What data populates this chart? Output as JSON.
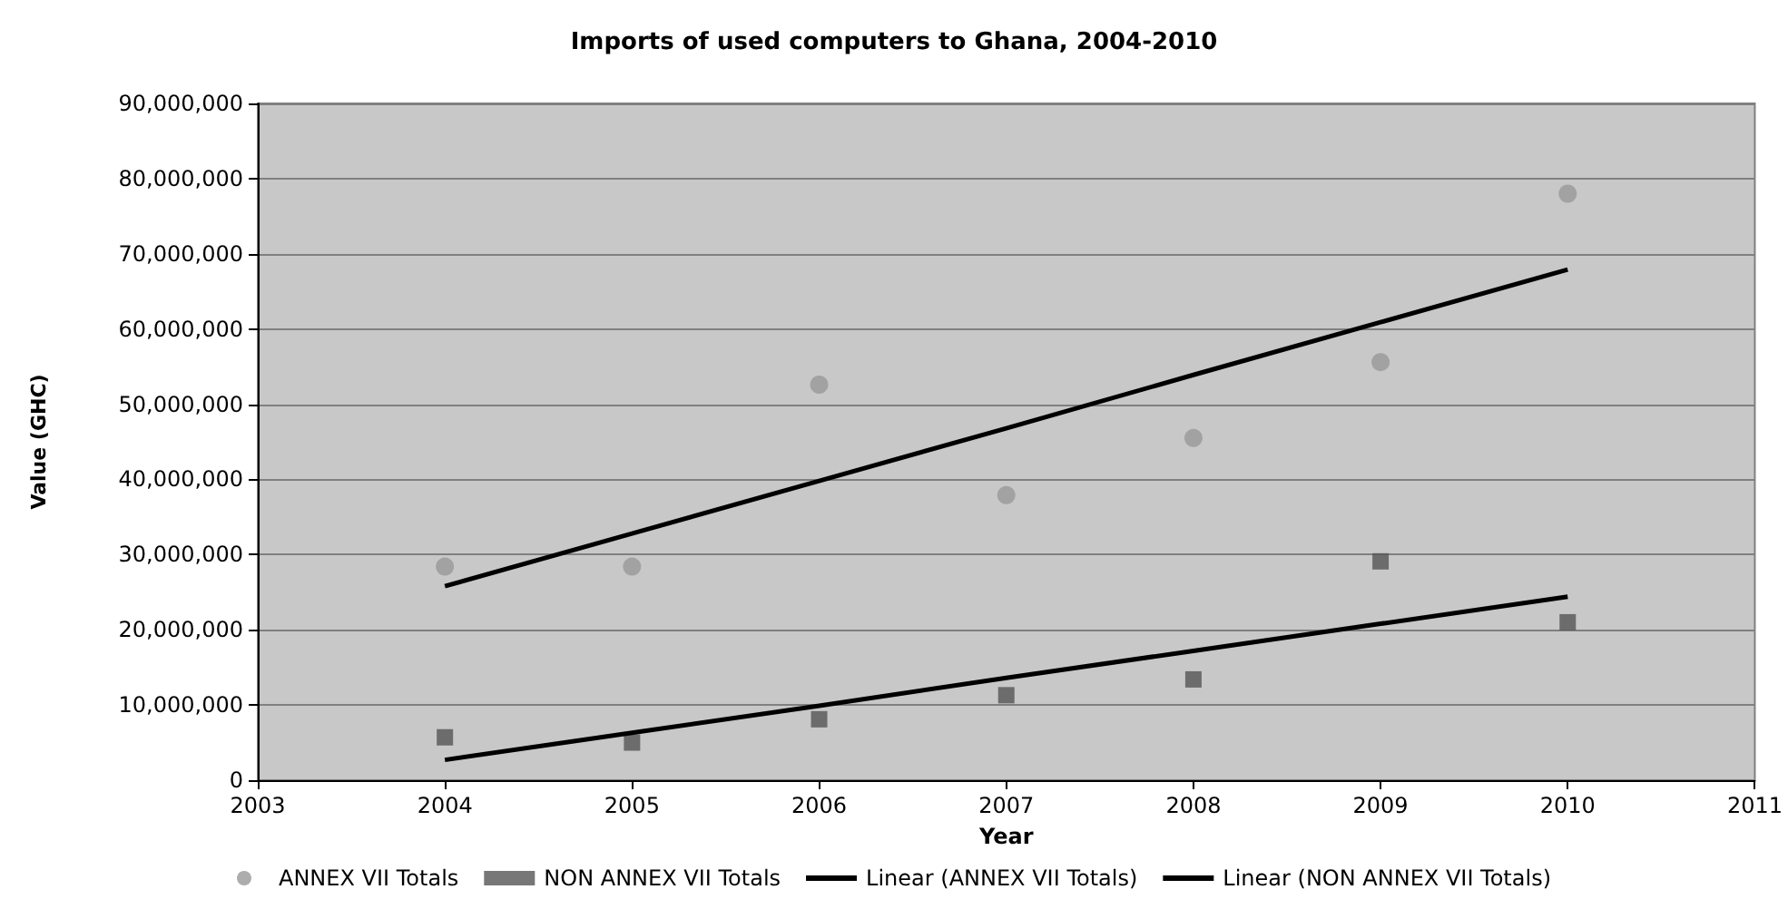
{
  "chart_data": {
    "type": "scatter",
    "title": "Imports of used computers to Ghana, 2004-2010",
    "xlabel": "Year",
    "ylabel": "Value (GHC)",
    "x": [
      2004,
      2005,
      2006,
      2007,
      2008,
      2009,
      2010
    ],
    "series": [
      {
        "name": "ANNEX VII Totals",
        "color": "#999999",
        "marker": "circle",
        "values": [
          28400000,
          28400000,
          52600000,
          37900000,
          45500000,
          55600000,
          78000000
        ]
      },
      {
        "name": "NON ANNEX VII Totals",
        "color": "#555555",
        "marker": "square",
        "values": [
          5700000,
          5000000,
          8100000,
          11300000,
          13400000,
          29100000,
          21000000
        ]
      },
      {
        "name": "Linear (ANNEX VII Totals)",
        "type": "line",
        "color": "#000000",
        "values": [
          25800000,
          32800000,
          39800000,
          46800000,
          53900000,
          60900000,
          67900000
        ]
      },
      {
        "name": "Linear (NON ANNEX VII Totals)",
        "type": "line",
        "color": "#000000",
        "values": [
          2700000,
          6300000,
          9900000,
          13600000,
          17200000,
          20800000,
          24400000
        ]
      }
    ],
    "xlim": [
      2003,
      2011
    ],
    "xticks": [
      2003,
      2004,
      2005,
      2006,
      2007,
      2008,
      2009,
      2010,
      2011
    ],
    "ylim": [
      0,
      90000000
    ],
    "yticks": [
      0,
      {
        "value": 10000000,
        "label": "10,000,000"
      },
      {
        "value": 20000000,
        "label": "20,000,000"
      },
      {
        "value": 30000000,
        "label": "30,000,000"
      },
      {
        "value": 40000000,
        "label": "40,000,000"
      },
      {
        "value": 50000000,
        "label": "50,000,000"
      },
      {
        "value": 60000000,
        "label": "60,000,000"
      },
      {
        "value": 70000000,
        "label": "70,000,000"
      },
      {
        "value": 80000000,
        "label": "80,000,000"
      },
      {
        "value": 90000000,
        "label": "90,000,000"
      }
    ],
    "grid": "y",
    "legend": "bottom"
  }
}
